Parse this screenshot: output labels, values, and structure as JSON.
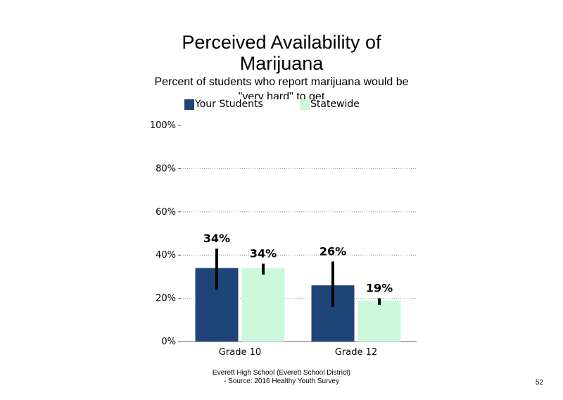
{
  "chart_data": {
    "type": "bar",
    "title": "Perceived Availability of Marijuana",
    "subtitle": "Percent of students  who report marijuana would  be \"very hard\" to get",
    "categories": [
      "Grade 10",
      "Grade 12"
    ],
    "series": [
      {
        "name": "Your Students",
        "color": "#1f4477",
        "values": [
          34,
          26
        ],
        "labels": [
          "34%",
          "26%"
        ],
        "error_low": [
          24,
          16
        ],
        "error_high": [
          43,
          37
        ]
      },
      {
        "name": "Statewide",
        "color": "#ccf9dc",
        "values": [
          34,
          19
        ],
        "labels": [
          "34%",
          "19%"
        ],
        "error_low": [
          31,
          17
        ],
        "error_high": [
          36,
          20
        ]
      }
    ],
    "yticks": [
      "0%",
      "20%",
      "40%",
      "60%",
      "80%",
      "100%"
    ],
    "ylim": [
      0,
      100
    ],
    "grid": "dotted horizontal",
    "legend_position": "top"
  },
  "footer": {
    "line1": "Everett High  School (Everett School District)",
    "line2": "- Source: 2016 Healthy  Youth Survey"
  },
  "page_number": "52"
}
